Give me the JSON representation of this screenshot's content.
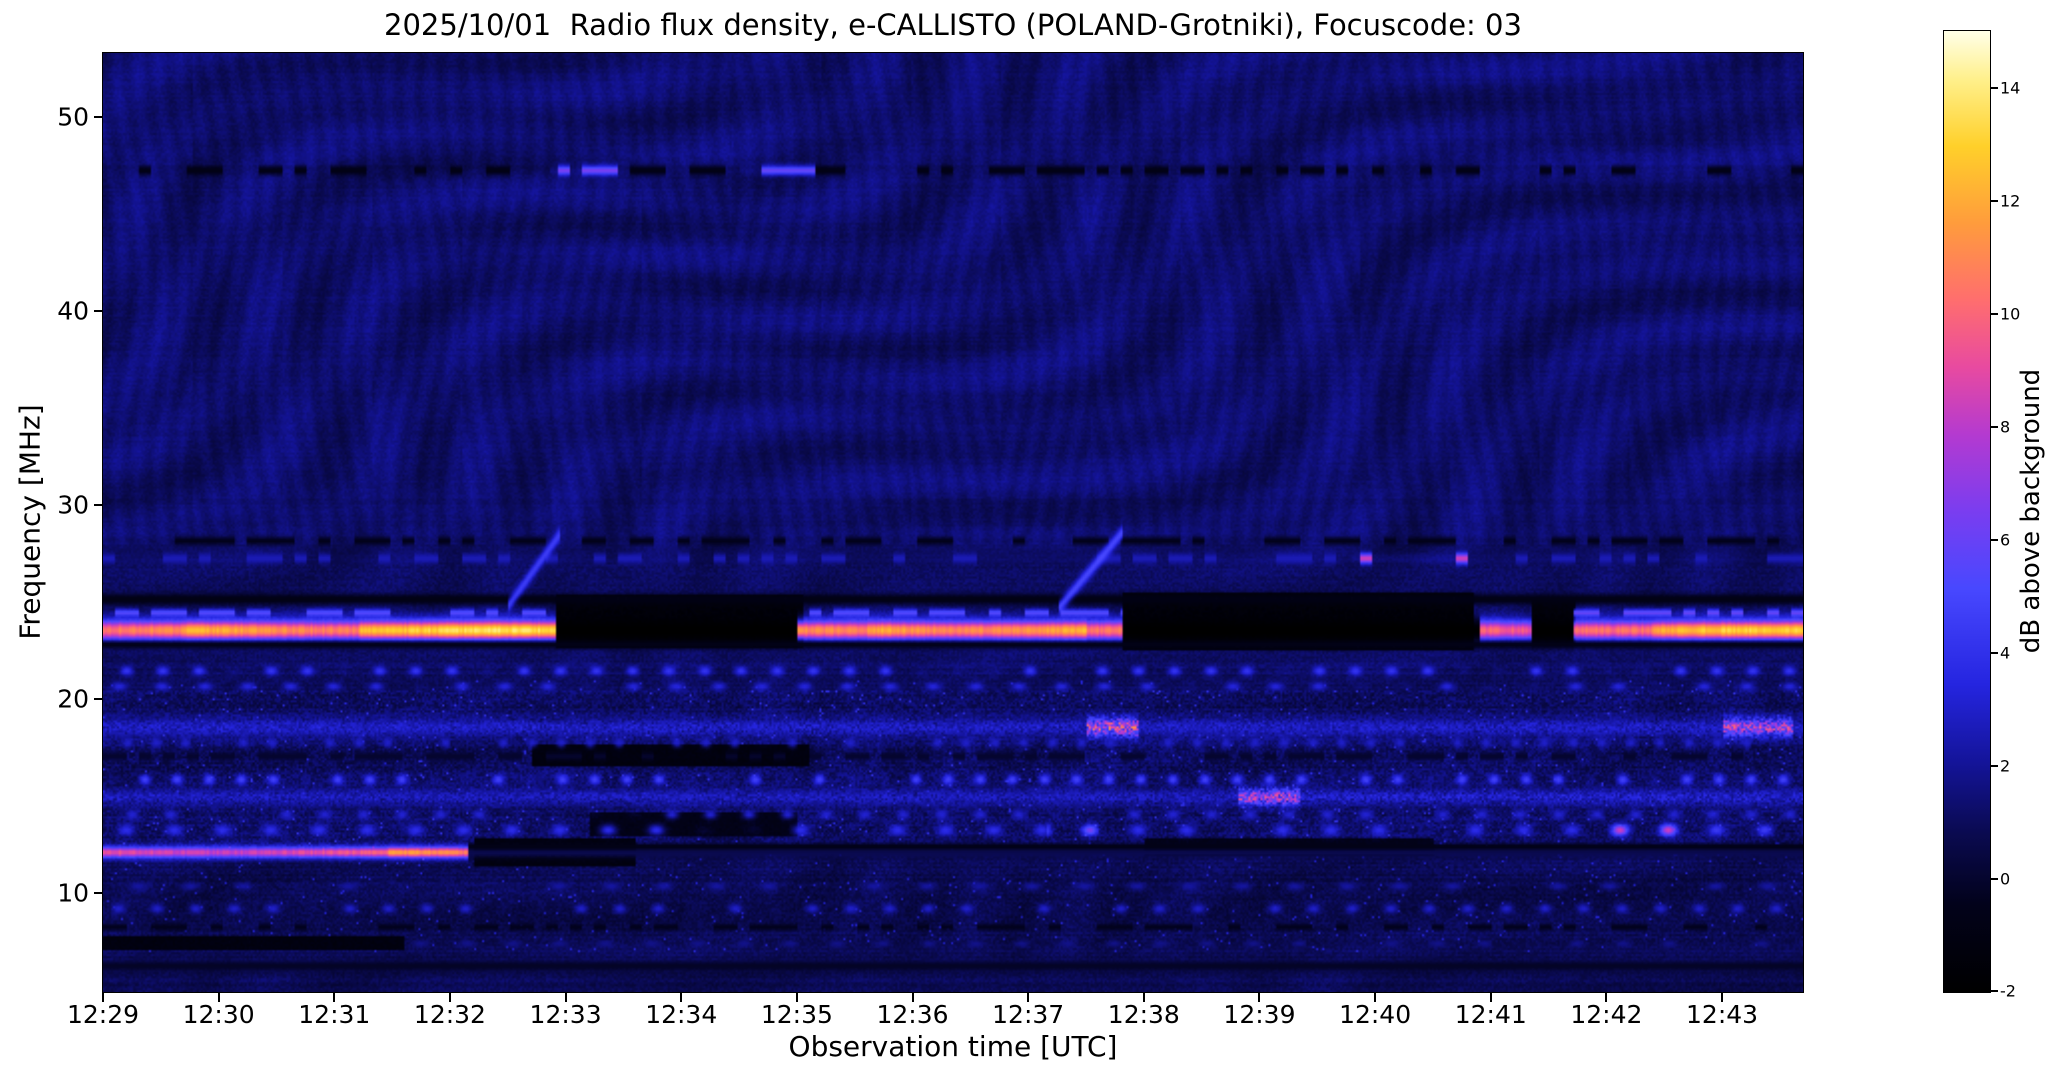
{
  "chart_data": {
    "type": "heatmap",
    "title": "2025/10/01  Radio flux density, e-CALLISTO (POLAND-Grotniki), Focuscode: 03",
    "xlabel": "Observation time [UTC]",
    "ylabel": "Frequency [MHz]",
    "colorbar_label": "dB above background",
    "x_tick_labels": [
      "12:29",
      "12:30",
      "12:31",
      "12:32",
      "12:33",
      "12:34",
      "12:35",
      "12:36",
      "12:37",
      "12:38",
      "12:39",
      "12:40",
      "12:41",
      "12:42",
      "12:43"
    ],
    "x_span_minutes": 14.7,
    "y_tick_labels": [
      10,
      20,
      30,
      40,
      50
    ],
    "freq_range_mhz": [
      4.9,
      53.3
    ],
    "db_range": [
      -2,
      15
    ],
    "colorbar_tick_labels": [
      -2,
      0,
      2,
      4,
      6,
      8,
      10,
      12,
      14
    ],
    "grid": false,
    "legend": "none",
    "background_db": 1.1,
    "colormap_stops": [
      [
        0.0,
        "#000000"
      ],
      [
        0.09,
        "#02021a"
      ],
      [
        0.165,
        "#0a0a50"
      ],
      [
        0.24,
        "#14149a"
      ],
      [
        0.32,
        "#2525e0"
      ],
      [
        0.42,
        "#4848ff"
      ],
      [
        0.5,
        "#7a3df0"
      ],
      [
        0.58,
        "#b43ad0"
      ],
      [
        0.65,
        "#e84aa0"
      ],
      [
        0.72,
        "#ff6e6e"
      ],
      [
        0.8,
        "#ff9c3c"
      ],
      [
        0.88,
        "#ffd02a"
      ],
      [
        0.95,
        "#fff08c"
      ],
      [
        1.0,
        "#ffffe8"
      ]
    ],
    "bands": [
      {
        "f": 23.6,
        "w": 0.95,
        "style": "solid",
        "segments": [
          [
            0,
            0.7,
            10.5
          ],
          [
            0.7,
            2.2,
            11.5
          ],
          [
            2.2,
            3.9,
            13
          ],
          [
            3.9,
            6.0,
            -2
          ],
          [
            6.0,
            6.6,
            10.5
          ],
          [
            6.6,
            8.5,
            11.8
          ],
          [
            8.5,
            8.8,
            10
          ],
          [
            8.8,
            11.9,
            -2
          ],
          [
            11.9,
            12.35,
            9.5
          ],
          [
            12.35,
            12.7,
            -2
          ],
          [
            12.7,
            13.4,
            11
          ],
          [
            13.4,
            14.7,
            12.5
          ]
        ]
      },
      {
        "f": 24.5,
        "w": 0.35,
        "style": "dashes",
        "duty": 0.55,
        "segments": [
          [
            0,
            3.9,
            5.5
          ],
          [
            6.0,
            8.8,
            5.5
          ],
          [
            12.7,
            14.7,
            6
          ]
        ]
      },
      {
        "f": 25.2,
        "w": 0.5,
        "style": "solid",
        "segments": [
          [
            0,
            14.7,
            -0.8
          ]
        ]
      },
      {
        "f": 22.85,
        "w": 0.4,
        "style": "solid",
        "segments": [
          [
            0,
            14.7,
            -0.6
          ]
        ]
      },
      {
        "f": 27.3,
        "w": 0.5,
        "style": "dashes",
        "duty": 0.4,
        "segments": [
          [
            0,
            10.8,
            2.6
          ],
          [
            10.8,
            11.8,
            8.5
          ],
          [
            11.8,
            14.7,
            2.6
          ]
        ]
      },
      {
        "f": 28.2,
        "w": 0.4,
        "style": "dashes",
        "duty": 0.55,
        "segments": [
          [
            0,
            14.7,
            -0.5
          ]
        ]
      },
      {
        "f": 21.5,
        "w": 0.45,
        "style": "dots",
        "dotf": 3.2,
        "segments": [
          [
            0,
            14.7,
            4.2
          ]
        ]
      },
      {
        "f": 20.7,
        "w": 0.4,
        "style": "dots",
        "dotf": 2.7,
        "segments": [
          [
            0,
            14.7,
            3.4
          ]
        ]
      },
      {
        "f": 18.6,
        "w": 0.9,
        "style": "noise",
        "segments": [
          [
            0,
            8.5,
            3.2
          ],
          [
            8.5,
            8.95,
            9.5
          ],
          [
            8.95,
            14.0,
            3.2
          ],
          [
            14.0,
            14.6,
            8.5
          ],
          [
            14.6,
            14.7,
            3.2
          ]
        ]
      },
      {
        "f": 17.8,
        "w": 0.5,
        "style": "dots",
        "dotf": 4.0,
        "segments": [
          [
            0,
            14.7,
            3.0
          ]
        ]
      },
      {
        "f": 17.1,
        "w": 0.45,
        "style": "dashes",
        "duty": 0.5,
        "segments": [
          [
            0,
            14.7,
            0.0
          ]
        ]
      },
      {
        "f": 15.9,
        "w": 0.5,
        "style": "dots",
        "dotf": 3.6,
        "segments": [
          [
            0,
            14.7,
            4.8
          ]
        ]
      },
      {
        "f": 15.0,
        "w": 0.8,
        "style": "noise",
        "segments": [
          [
            0,
            9.8,
            3.0
          ],
          [
            9.8,
            10.35,
            8.5
          ],
          [
            10.35,
            14.7,
            3.4
          ]
        ]
      },
      {
        "f": 14.1,
        "w": 0.45,
        "style": "dots",
        "dotf": 3.0,
        "segments": [
          [
            0,
            14.7,
            3.2
          ]
        ]
      },
      {
        "f": 13.3,
        "w": 0.55,
        "style": "dots",
        "dotf": 2.4,
        "segments": [
          [
            0,
            8.15,
            3.8
          ],
          [
            8.15,
            8.6,
            6.5
          ],
          [
            8.6,
            12.9,
            3.8
          ],
          [
            12.9,
            13.65,
            8.5
          ],
          [
            13.65,
            14.7,
            4.5
          ]
        ]
      },
      {
        "f": 12.15,
        "w": 0.55,
        "style": "solid",
        "segments": [
          [
            0,
            2.45,
            9
          ],
          [
            2.45,
            3.15,
            11
          ],
          [
            3.15,
            14.7,
            0.8
          ]
        ]
      },
      {
        "f": 12.45,
        "w": 0.3,
        "style": "solid",
        "segments": [
          [
            3.15,
            14.7,
            -0.7
          ]
        ]
      },
      {
        "f": 10.4,
        "w": 0.4,
        "style": "dots",
        "dotf": 2.2,
        "segments": [
          [
            0,
            14.7,
            2.2
          ]
        ]
      },
      {
        "f": 9.25,
        "w": 0.45,
        "style": "dots",
        "dotf": 3.0,
        "segments": [
          [
            0,
            14.7,
            3.0
          ]
        ]
      },
      {
        "f": 8.3,
        "w": 0.35,
        "style": "dashes",
        "duty": 0.5,
        "segments": [
          [
            0,
            14.7,
            -0.4
          ]
        ]
      },
      {
        "f": 7.45,
        "w": 0.35,
        "style": "dots",
        "dotf": 2.5,
        "segments": [
          [
            2.6,
            14.7,
            1.8
          ]
        ]
      },
      {
        "f": 47.3,
        "w": 0.45,
        "style": "dashes",
        "duty": 0.5,
        "segments": [
          [
            0,
            3.85,
            -0.8
          ],
          [
            3.85,
            4.45,
            6.5
          ],
          [
            4.45,
            5.5,
            -0.8
          ],
          [
            5.5,
            6.15,
            6
          ],
          [
            6.15,
            14.7,
            -0.8
          ]
        ]
      },
      {
        "f": 6.3,
        "w": 0.45,
        "style": "solid",
        "segments": [
          [
            0,
            14.7,
            -0.2
          ]
        ]
      }
    ],
    "blackouts": [
      {
        "t": [
          3.9,
          6.05
        ],
        "f": [
          22.7,
          25.4
        ],
        "db": -1.7
      },
      {
        "t": [
          8.8,
          11.85
        ],
        "f": [
          22.6,
          25.5
        ],
        "db": -1.7
      },
      {
        "t": [
          12.35,
          12.72
        ],
        "f": [
          22.9,
          25.2
        ],
        "db": -1.6
      },
      {
        "t": [
          3.2,
          4.6
        ],
        "f": [
          11.4,
          12.9
        ],
        "db": -1.3
      },
      {
        "t": [
          3.7,
          6.1
        ],
        "f": [
          16.6,
          17.7
        ],
        "db": -1.4
      },
      {
        "t": [
          0,
          2.6
        ],
        "f": [
          7.1,
          7.85
        ],
        "db": -1.3
      },
      {
        "t": [
          9.0,
          11.5
        ],
        "f": [
          12.0,
          12.9
        ],
        "db": -0.8
      },
      {
        "t": [
          4.2,
          6.0
        ],
        "f": [
          13.0,
          14.2
        ],
        "db": -0.9
      }
    ],
    "diagonal_bursts": [
      {
        "t0": 3.5,
        "f0": 24.9,
        "t1": 3.95,
        "f1": 28.6,
        "db": 5.0,
        "w": 0.35
      },
      {
        "t0": 8.25,
        "f0": 24.7,
        "t1": 8.8,
        "f1": 28.6,
        "db": 5.5,
        "w": 0.35
      }
    ]
  }
}
